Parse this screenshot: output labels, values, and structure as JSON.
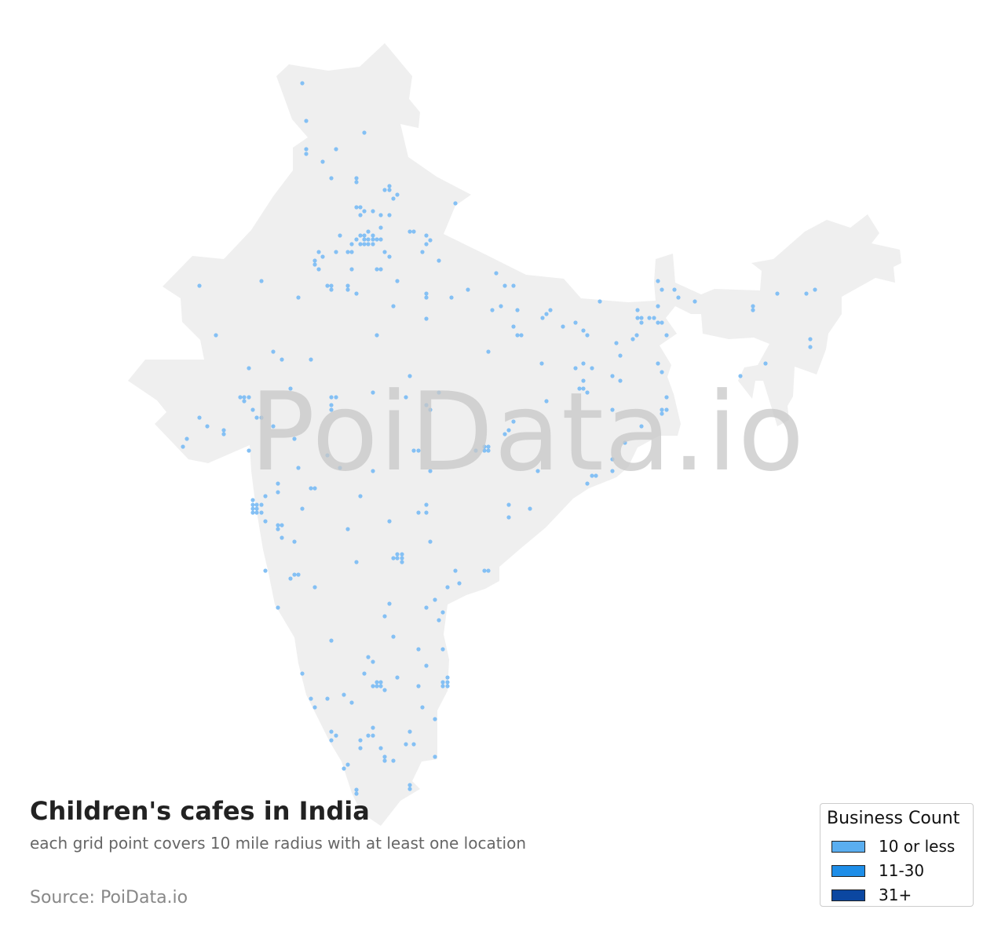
{
  "title": "Children's cafes in India",
  "subtitle": "each grid point covers 10 mile radius with at least one location",
  "source": "Source: PoiData.io",
  "watermark": "PoiData.io",
  "map": {
    "region": "India",
    "land_color": "#efefef",
    "dot_color": "#84c0f4"
  },
  "legend": {
    "title": "Business Count",
    "items": [
      {
        "label": "10 or less",
        "color": "#5aaef0"
      },
      {
        "label": "11-30",
        "color": "#1e8ee8"
      },
      {
        "label": "31+",
        "color": "#0b47a1"
      }
    ]
  }
}
